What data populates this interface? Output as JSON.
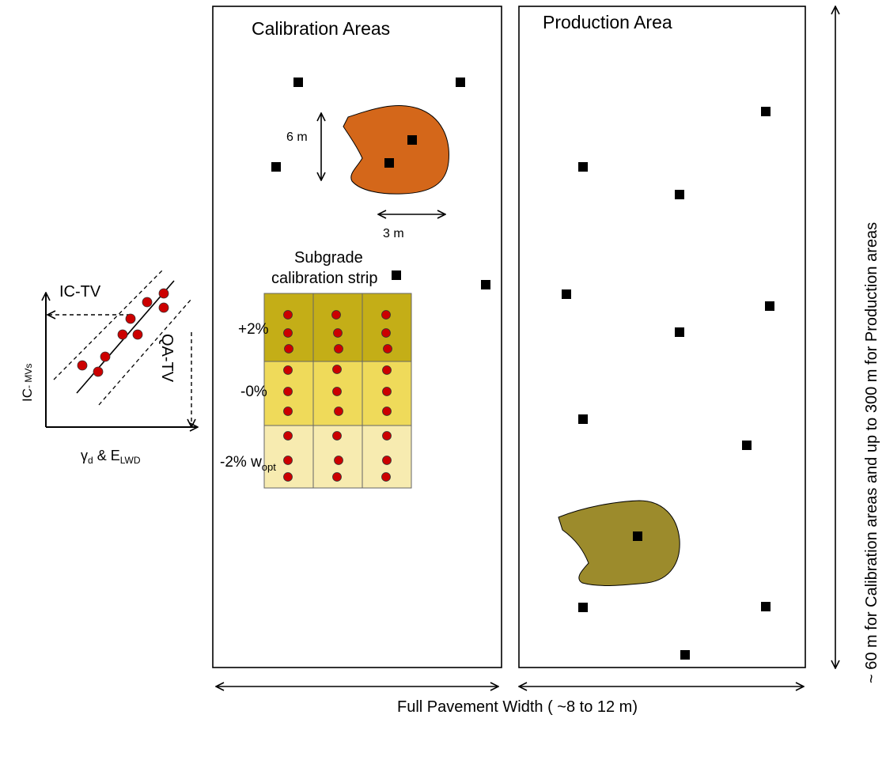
{
  "calibration_panel": {
    "title": "Calibration Areas"
  },
  "production_panel": {
    "title": "Production Area"
  },
  "dimensions": {
    "length_6m": "6 m",
    "width_3m": "3 m",
    "full_width": "Full Pavement Width  ( ~8 to 12 m)",
    "vertical_extent": "~ 60 m for Calibration areas and up to 300 m for Production areas"
  },
  "strip": {
    "title_line1": "Subgrade",
    "title_line2": "calibration strip",
    "rows": [
      {
        "label": "+2%",
        "color": "#c4ae17"
      },
      {
        "label": "-0%",
        "color": "#efda5a"
      },
      {
        "label": "-2% w",
        "sub": "opt",
        "color": "#f7ebb0"
      }
    ]
  },
  "regression_inset": {
    "ic_tv": "IC-TV",
    "qa_tv": "QA-TV",
    "yaxis_main": "IC",
    "yaxis_sub": "- MVs",
    "xaxis_gamma": "γ",
    "xaxis_gamma_sub": "d",
    "xaxis_amp": " & E",
    "xaxis_e_sub": "LWD"
  },
  "colors": {
    "calibration_blob": "#d4671a",
    "production_blob": "#9c8b2c",
    "test_point": "#000000",
    "measure_dot": "#cc0000"
  }
}
